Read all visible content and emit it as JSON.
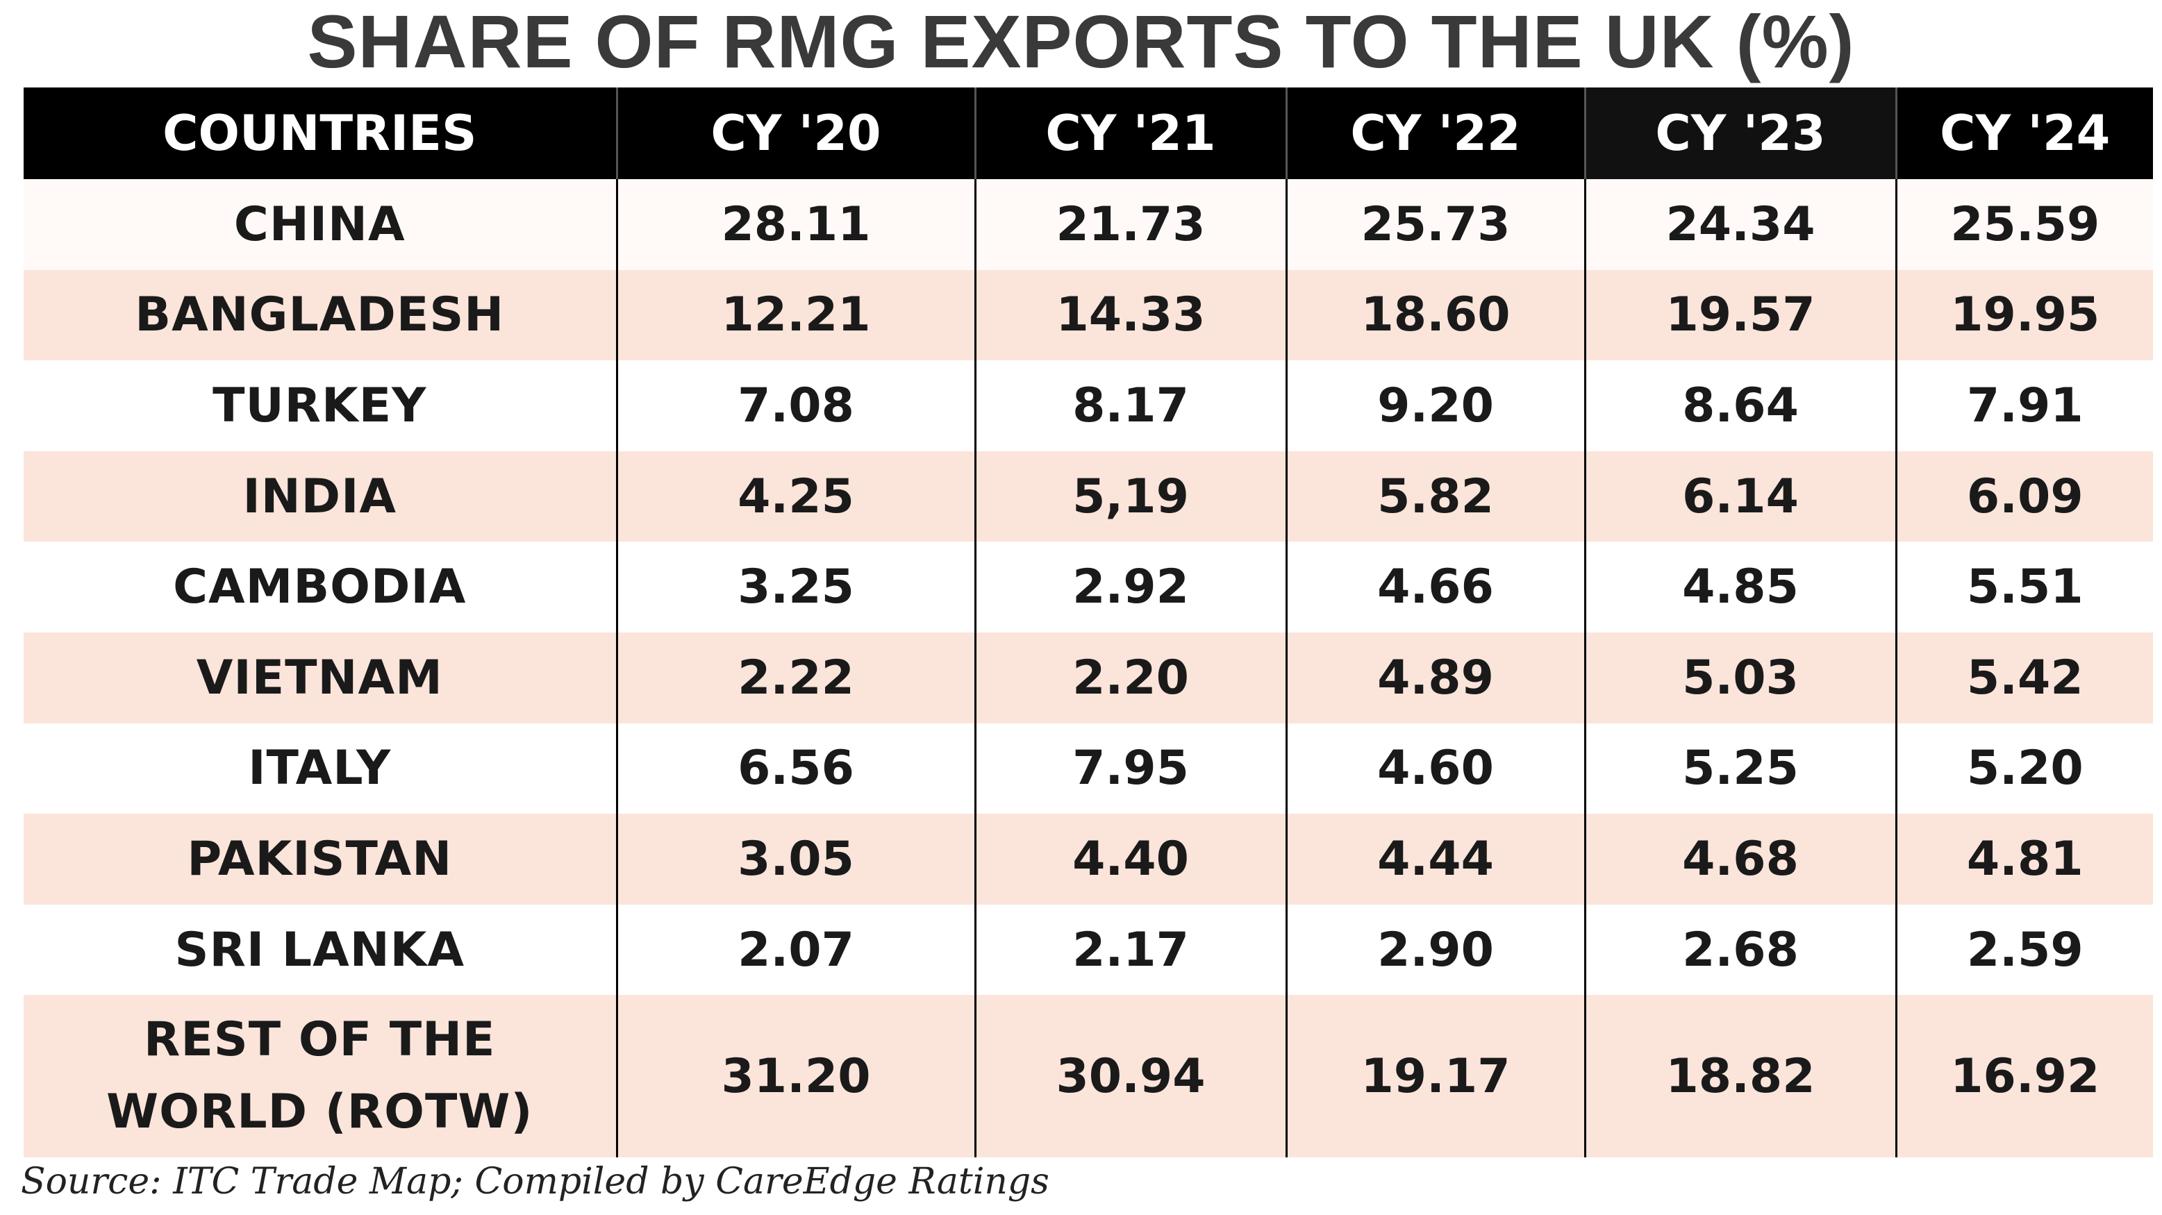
{
  "title": "SHARE OF RMG EXPORTS TO THE UK (%)",
  "source": "Source: ITC Trade Map; Compiled by CareEdge Ratings",
  "chart_data": {
    "type": "table",
    "title": "SHARE OF RMG EXPORTS TO THE UK (%)",
    "columns": [
      "COUNTRIES",
      "CY '20",
      "CY '21",
      "CY '22",
      "CY '23",
      "CY '24"
    ],
    "rows": [
      {
        "country": "CHINA",
        "values": [
          "28.11",
          "21.73",
          "25.73",
          "24.34",
          "25.59"
        ]
      },
      {
        "country": "BANGLADESH",
        "values": [
          "12.21",
          "14.33",
          "18.60",
          "19.57",
          "19.95"
        ]
      },
      {
        "country": "TURKEY",
        "values": [
          "7.08",
          "8.17",
          "9.20",
          "8.64",
          "7.91"
        ]
      },
      {
        "country": "INDIA",
        "values": [
          "4.25",
          "5,19",
          "5.82",
          "6.14",
          "6.09"
        ]
      },
      {
        "country": "CAMBODIA",
        "values": [
          "3.25",
          "2.92",
          "4.66",
          "4.85",
          "5.51"
        ]
      },
      {
        "country": "VIETNAM",
        "values": [
          "2.22",
          "2.20",
          "4.89",
          "5.03",
          "5.42"
        ]
      },
      {
        "country": "ITALY",
        "values": [
          "6.56",
          "7.95",
          "4.60",
          "5.25",
          "5.20"
        ]
      },
      {
        "country": "PAKISTAN",
        "values": [
          "3.05",
          "4.40",
          "4.44",
          "4.68",
          "4.81"
        ]
      },
      {
        "country": "SRI LANKA",
        "values": [
          "2.07",
          "2.17",
          "2.90",
          "2.68",
          "2.59"
        ]
      },
      {
        "country": "REST OF THE WORLD (ROTW)",
        "values": [
          "31.20",
          "30.94",
          "19.17",
          "18.82",
          "16.92"
        ]
      }
    ]
  }
}
